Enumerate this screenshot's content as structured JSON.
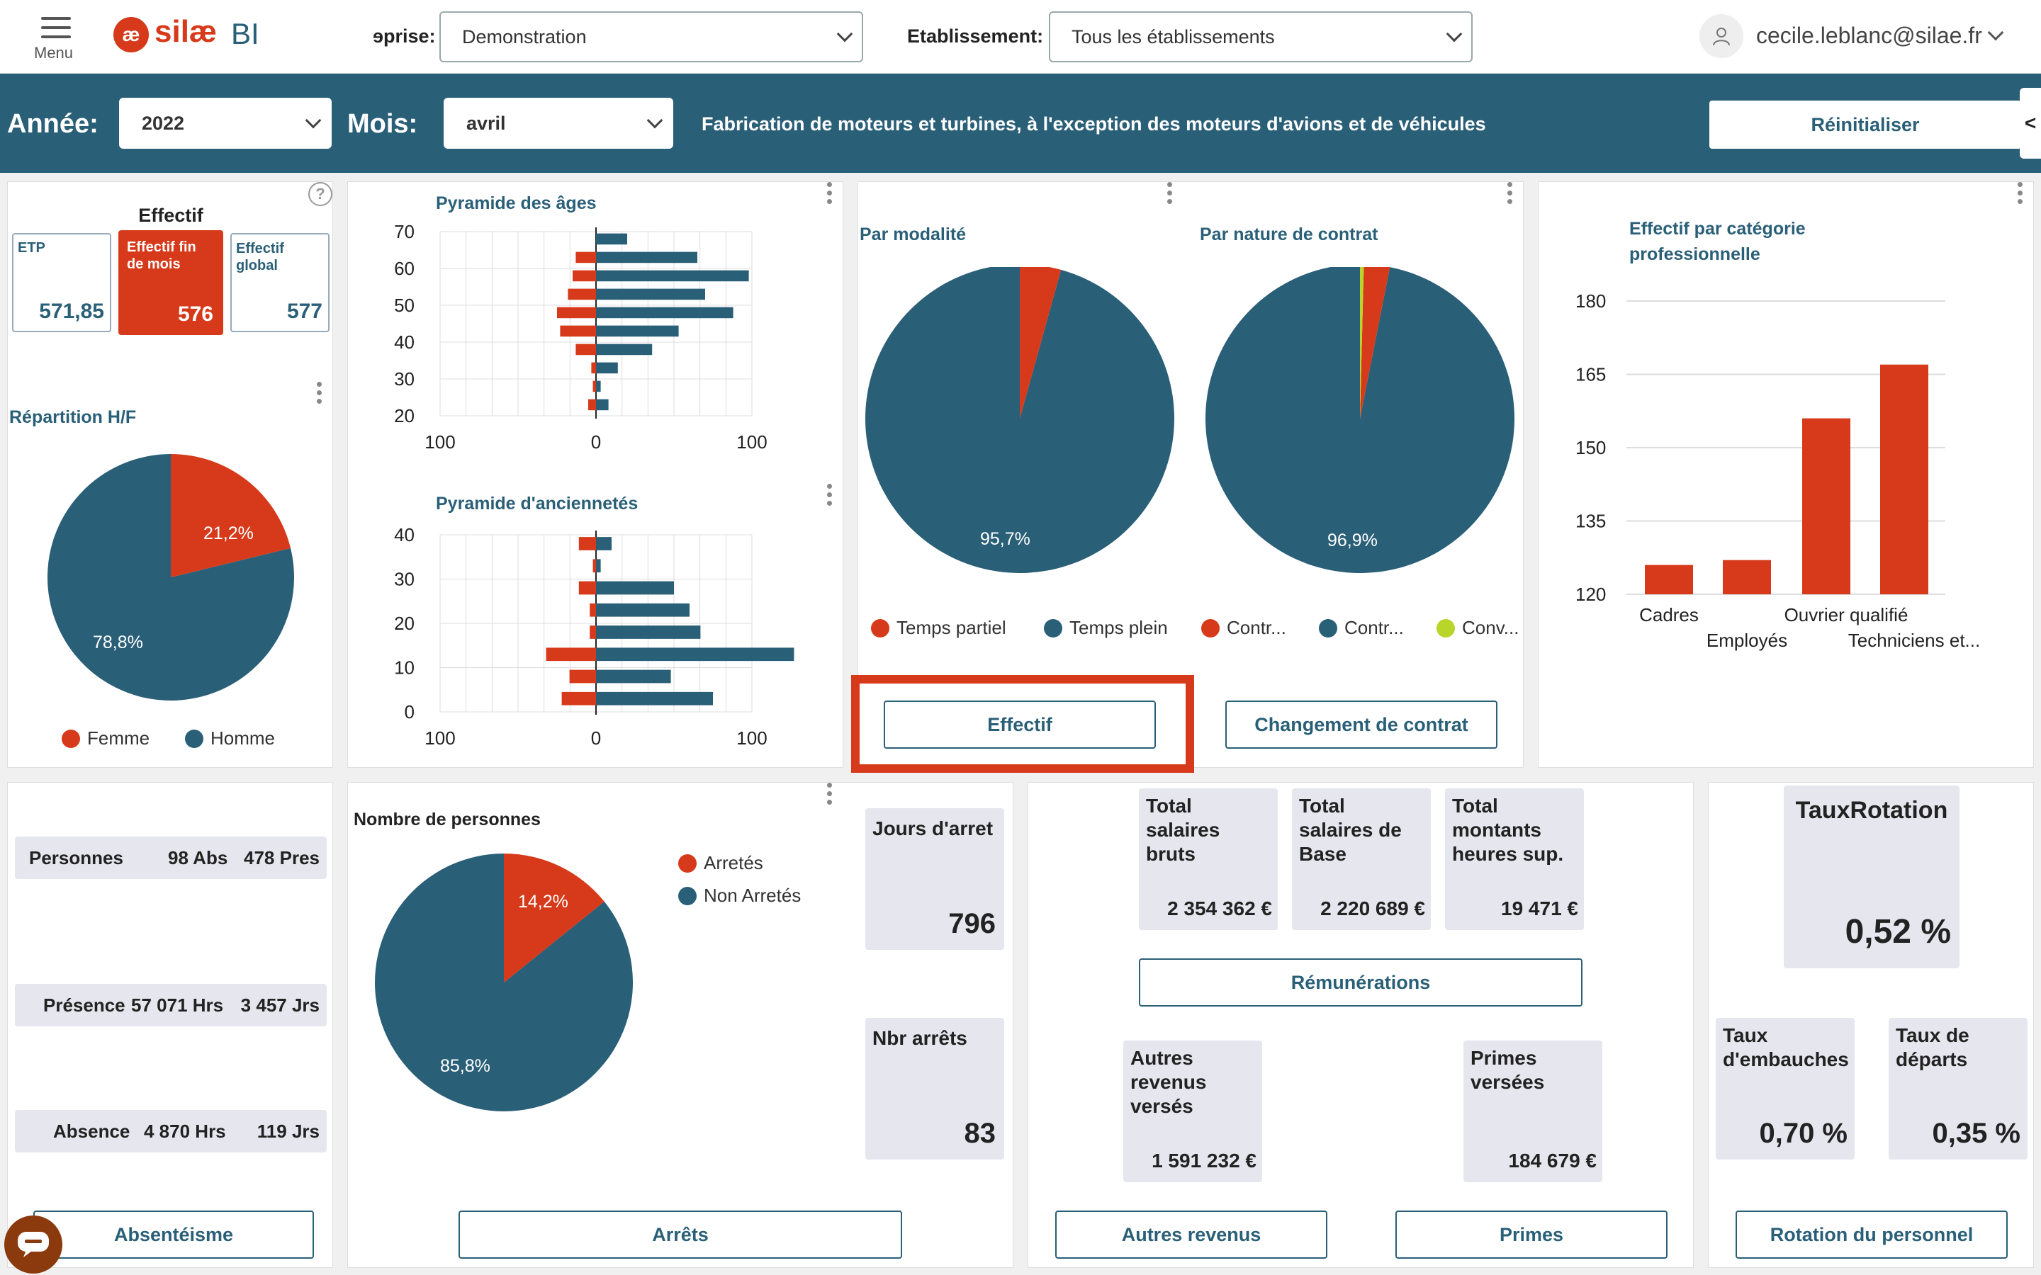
{
  "header": {
    "menu_label": "Menu",
    "brand_name": "silæ",
    "brand_suffix": "BI",
    "entreprise_label": "ɘprise:",
    "entreprise_value": "Demonstration",
    "etablissement_label": "Etablissement:",
    "etablissement_value": "Tous les établissements",
    "user_email": "cecile.leblanc@silae.fr"
  },
  "filters": {
    "annee_label": "Année:",
    "annee_value": "2022",
    "mois_label": "Mois:",
    "mois_value": "avril",
    "sector": "Fabrication de moteurs et turbines, à l'exception des moteurs d'avions et de véhicules",
    "reset_label": "Réinitialiser",
    "collapse_label": "<"
  },
  "effectif": {
    "title": "Effectif",
    "help": "?",
    "cards": [
      {
        "label": "ETP",
        "value": "571,85"
      },
      {
        "label": "Effectif fin de mois",
        "value": "576"
      },
      {
        "label": "Effectif global",
        "value": "577"
      }
    ]
  },
  "repartition": {
    "title": "Répartition H/F",
    "female_pct": "21,2%",
    "male_pct": "78,8%",
    "female_label": "Femme",
    "male_label": "Homme"
  },
  "pyramide_ages": {
    "title": "Pyramide des âges",
    "y_ticks": [
      "70",
      "60",
      "50",
      "40",
      "30",
      "20"
    ],
    "x_ticks": [
      "100",
      "0",
      "100"
    ]
  },
  "pyramide_anc": {
    "title": "Pyramide d'anciennetés",
    "y_ticks": [
      "40",
      "30",
      "20",
      "10",
      "0"
    ],
    "x_ticks": [
      "100",
      "0",
      "100"
    ]
  },
  "modalite": {
    "title": "Par modalité",
    "pct": "95,7%",
    "legend": [
      "Temps partiel",
      "Temps plein"
    ]
  },
  "contrat": {
    "title": "Par nature de contrat",
    "pct": "96,9%",
    "legend": [
      "Contr...",
      "Contr...",
      "Conv..."
    ]
  },
  "buttons": {
    "effectif": "Effectif",
    "changement": "Changement de contrat",
    "absenteisme": "Absentéisme",
    "arrets": "Arrêts",
    "remunerations": "Rémunérations",
    "autres": "Autres revenus",
    "primes": "Primes",
    "rotation": "Rotation du personnel"
  },
  "categorie": {
    "title_line1": "Effectif par catégorie",
    "title_line2": "professionnelle",
    "y_ticks": [
      "180",
      "165",
      "150",
      "135",
      "120"
    ],
    "x_labels_top": [
      "Cadres",
      "Ouvrier qualifié"
    ],
    "x_labels_bottom": [
      "Employés",
      "Techniciens et..."
    ]
  },
  "absences": {
    "rows": [
      {
        "label": "Personnes",
        "a": "98 Abs",
        "b": "478 Pres"
      },
      {
        "label": "Présence",
        "a": "57 071 Hrs",
        "b": "3 457 Jrs"
      },
      {
        "label": "Absence",
        "a": "4 870 Hrs",
        "b": "119 Jrs"
      }
    ]
  },
  "arrets": {
    "title": "Nombre de personnes",
    "arretes_pct": "14,2%",
    "non_pct": "85,8%",
    "legend": [
      "Arretés",
      "Non Arretés"
    ],
    "jours_label": "Jours d'arret",
    "jours_value": "796",
    "nbr_label": "Nbr arrêts",
    "nbr_value": "83"
  },
  "remun": {
    "cards": [
      {
        "l1": "Total",
        "l2": "salaires",
        "l3": "bruts",
        "value": "2 354 362 €"
      },
      {
        "l1": "Total",
        "l2": "salaires de",
        "l3": "Base",
        "value": "2 220 689 €"
      },
      {
        "l1": "Total",
        "l2": "montants",
        "l3": "heures sup.",
        "value": "19 471 €"
      }
    ],
    "autres": {
      "l1": "Autres",
      "l2": "revenus",
      "l3": "versés",
      "value": "1 591 232 €"
    },
    "primes": {
      "l1": "Primes",
      "l2": "versées",
      "value": "184 679 €"
    }
  },
  "rotation": {
    "title": "TauxRotation",
    "value": "0,52 %",
    "embauches_l1": "Taux",
    "embauches_l2": "d'embauches",
    "embauches_value": "0,70 %",
    "departs_l1": "Taux de",
    "departs_l2": "départs",
    "departs_value": "0,35 %"
  },
  "chart_data": [
    {
      "type": "bar",
      "title": "Pyramide des âges",
      "categories": [
        "20",
        "25",
        "30",
        "35",
        "40",
        "45",
        "50",
        "55",
        "60",
        "65"
      ],
      "series": [
        {
          "values": [
            -5,
            -2,
            -3,
            -13,
            -23,
            -25,
            -18,
            -15,
            -13,
            0
          ]
        },
        {
          "values": [
            8,
            3,
            14,
            36,
            53,
            88,
            70,
            98,
            65,
            20
          ]
        }
      ]
    },
    {
      "type": "bar",
      "title": "Pyramide d'anciennetés",
      "categories": [
        "0",
        "5",
        "10",
        "15",
        "20",
        "25",
        "30",
        "35",
        "40"
      ],
      "series": [
        {
          "values": [
            -22,
            -17,
            -32,
            -4,
            -4,
            -11,
            -2,
            -11,
            0
          ]
        },
        {
          "values": [
            75,
            48,
            127,
            67,
            60,
            50,
            3,
            10,
            0
          ]
        }
      ]
    },
    {
      "type": "pie",
      "title": "Répartition H/F",
      "labels": [
        "Femme",
        "Homme"
      ],
      "values": [
        21.2,
        78.8
      ]
    },
    {
      "type": "pie",
      "title": "Par modalité",
      "labels": [
        "Temps partiel",
        "Temps plein"
      ],
      "values": [
        4.3,
        95.7
      ]
    },
    {
      "type": "pie",
      "title": "Par nature de contrat",
      "values": [
        2.7,
        96.9,
        0.4
      ]
    },
    {
      "type": "bar",
      "title": "Effectif par catégorie professionnelle",
      "categories": [
        "Cadres",
        "Employés",
        "Ouvrier qualifié",
        "Techniciens et..."
      ],
      "values": [
        126,
        127,
        156,
        167
      ],
      "ylim": [
        120,
        180
      ]
    },
    {
      "type": "pie",
      "title": "Nombre de personnes",
      "labels": [
        "Arretés",
        "Non Arretés"
      ],
      "values": [
        14.2,
        85.8
      ]
    }
  ],
  "colors": {
    "teal": "#2a5f78",
    "red": "#d63a1a",
    "lime": "#b8d62a"
  }
}
